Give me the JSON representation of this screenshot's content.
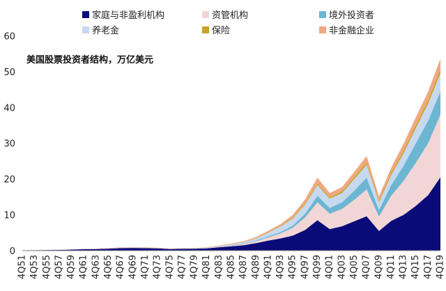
{
  "chart_data": {
    "type": "area",
    "stacked": true,
    "title": "美国股票投资者结构，万亿美元",
    "xlabel": "",
    "ylabel": "",
    "ylim": [
      0,
      63
    ],
    "yticks": [
      0,
      10,
      20,
      30,
      40,
      50,
      60
    ],
    "grid": false,
    "legend_position": "top",
    "x": [
      "4Q51",
      "4Q53",
      "4Q55",
      "4Q57",
      "4Q59",
      "4Q61",
      "4Q63",
      "4Q65",
      "4Q67",
      "4Q69",
      "4Q71",
      "4Q73",
      "4Q75",
      "4Q77",
      "4Q79",
      "4Q81",
      "4Q83",
      "4Q85",
      "4Q87",
      "4Q89",
      "4Q91",
      "4Q93",
      "4Q95",
      "4Q97",
      "4Q99",
      "4Q01",
      "4Q03",
      "4Q05",
      "4Q07",
      "4Q09",
      "4Q11",
      "4Q13",
      "4Q15",
      "4Q17",
      "4Q19"
    ],
    "series": [
      {
        "name": "家庭与非盈利机构",
        "color": "#0a0a78",
        "values": [
          0.1,
          0.12,
          0.18,
          0.2,
          0.3,
          0.4,
          0.45,
          0.55,
          0.7,
          0.75,
          0.7,
          0.65,
          0.45,
          0.5,
          0.55,
          0.65,
          0.95,
          1.2,
          1.5,
          2.1,
          2.8,
          3.4,
          4.2,
          5.8,
          8.5,
          6.0,
          6.8,
          8.2,
          9.6,
          5.5,
          8.3,
          10.0,
          12.5,
          15.5,
          20.5
        ]
      },
      {
        "name": "资管机构",
        "color": "#f2d6d6",
        "values": [
          0,
          0,
          0,
          0,
          0,
          0,
          0.05,
          0.05,
          0.08,
          0.08,
          0.08,
          0.06,
          0.05,
          0.05,
          0.06,
          0.08,
          0.12,
          0.2,
          0.3,
          0.5,
          0.9,
          1.4,
          2.2,
          3.5,
          5.0,
          4.3,
          4.8,
          6.0,
          7.5,
          4.0,
          7.0,
          9.5,
          12.0,
          14.5,
          17.5
        ]
      },
      {
        "name": "境外投资者",
        "color": "#6cb6d2",
        "values": [
          0,
          0,
          0,
          0,
          0,
          0,
          0,
          0,
          0,
          0,
          0,
          0,
          0,
          0,
          0,
          0,
          0.05,
          0.1,
          0.15,
          0.2,
          0.3,
          0.4,
          0.6,
          1.0,
          1.8,
          1.6,
          1.9,
          2.6,
          3.3,
          1.8,
          3.0,
          4.2,
          5.5,
          6.3,
          6.5
        ]
      },
      {
        "name": "养老金",
        "color": "#c6d9f0",
        "values": [
          0,
          0,
          0,
          0,
          0,
          0.02,
          0.03,
          0.04,
          0.05,
          0.06,
          0.06,
          0.05,
          0.05,
          0.06,
          0.07,
          0.1,
          0.15,
          0.25,
          0.4,
          0.6,
          1.0,
          1.5,
          2.0,
          2.6,
          3.0,
          2.6,
          2.6,
          3.2,
          3.6,
          2.2,
          2.8,
          3.5,
          4.2,
          4.8,
          5.0
        ]
      },
      {
        "name": "保险",
        "color": "#c9a227",
        "values": [
          0,
          0,
          0,
          0,
          0,
          0,
          0,
          0,
          0,
          0,
          0,
          0,
          0,
          0,
          0,
          0.02,
          0.03,
          0.05,
          0.07,
          0.1,
          0.15,
          0.2,
          0.28,
          0.35,
          0.45,
          0.4,
          0.45,
          0.55,
          0.65,
          0.45,
          0.6,
          0.75,
          0.85,
          0.95,
          1.1
        ]
      },
      {
        "name": "非金融企业",
        "color": "#f0a882",
        "values": [
          0.02,
          0.02,
          0.03,
          0.03,
          0.04,
          0.05,
          0.06,
          0.07,
          0.08,
          0.08,
          0.08,
          0.07,
          0.07,
          0.07,
          0.08,
          0.1,
          0.13,
          0.17,
          0.2,
          0.3,
          0.4,
          0.5,
          0.7,
          1.1,
          1.6,
          1.2,
          1.2,
          1.5,
          1.8,
          1.2,
          1.5,
          1.9,
          2.2,
          2.4,
          3.0
        ]
      }
    ]
  }
}
